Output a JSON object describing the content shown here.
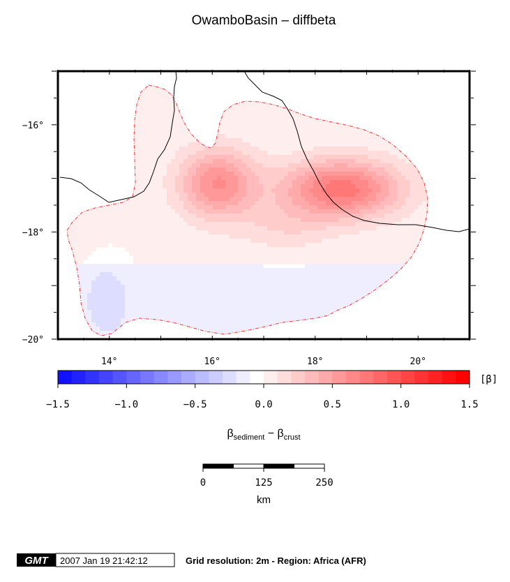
{
  "title": "OwamboBasin – diffbeta",
  "chart_data": {
    "type": "heatmap",
    "title": "OwamboBasin – diffbeta",
    "xlim": [
      13,
      21
    ],
    "ylim": [
      -20,
      -15
    ],
    "x_ticks": [
      {
        "value": 14,
        "label": "14°"
      },
      {
        "value": 16,
        "label": "16°"
      },
      {
        "value": 18,
        "label": "18°"
      },
      {
        "value": 20,
        "label": "20°"
      }
    ],
    "y_ticks": [
      {
        "value": -16,
        "label": "−16°"
      },
      {
        "value": -18,
        "label": "−18°"
      },
      {
        "value": -20,
        "label": "−20°"
      }
    ],
    "peaks": [
      {
        "lon": 16.1,
        "lat": -17.1,
        "value": 0.6
      },
      {
        "lon": 18.5,
        "lat": -17.2,
        "value": 0.75
      }
    ],
    "negative_zone": {
      "lon": 14.0,
      "lat": -19.3,
      "value": -0.2
    },
    "colorbar": {
      "min": -1.5,
      "max": 1.5,
      "ticks": [
        {
          "value": -1.5,
          "label": "−1.5"
        },
        {
          "value": -1.0,
          "label": "−1.0"
        },
        {
          "value": -0.5,
          "label": "−0.5"
        },
        {
          "value": 0.0,
          "label": "0.0"
        },
        {
          "value": 0.5,
          "label": "0.5"
        },
        {
          "value": 1.0,
          "label": "1.0"
        },
        {
          "value": 1.5,
          "label": "1.5"
        }
      ],
      "unit": "[β]",
      "negative_color": "#0000ff",
      "positive_color": "#ff0000",
      "label_base": "β",
      "label_sub1": "sediment",
      "label_mid": " − β",
      "label_sub2": "crust"
    },
    "outline_color": "#ff3030",
    "border_color": "#000000"
  },
  "scalebar": {
    "ticks": [
      {
        "value": 0,
        "label": "0"
      },
      {
        "value": 125,
        "label": "125"
      },
      {
        "value": 250,
        "label": "250"
      }
    ],
    "unit": "km"
  },
  "footer": {
    "logo": "GMT",
    "timestamp": "2007 Jan 19 21:42:12",
    "info": "Grid resolution: 2m - Region: Africa (AFR)"
  }
}
